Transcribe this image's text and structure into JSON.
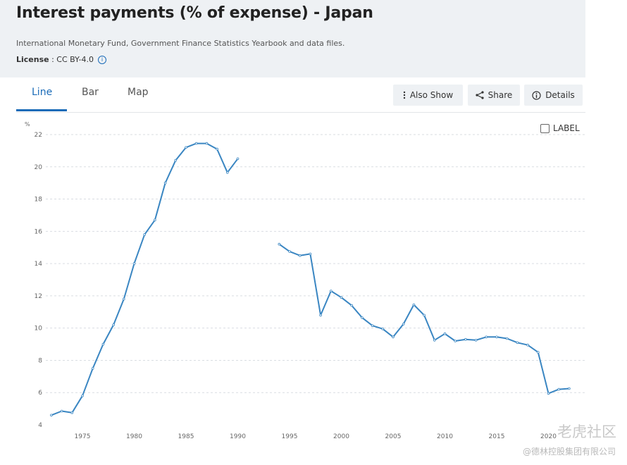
{
  "page": {
    "title": "Interest payments (% of expense) - Japan",
    "source": "International Monetary Fund, Government Finance Statistics Yearbook and data files.",
    "license_label": "License",
    "license_value": " : CC BY-4.0"
  },
  "tabs": [
    {
      "label": "Line",
      "active": true
    },
    {
      "label": "Bar",
      "active": false
    },
    {
      "label": "Map",
      "active": false
    }
  ],
  "toolbar": {
    "also_show": "Also Show",
    "share": "Share",
    "details": "Details"
  },
  "label_toggle": "LABEL",
  "watermark": {
    "text": "老虎社区",
    "subtext": "@德林控股集团有限公司"
  },
  "colors": {
    "line": "#3a86c2",
    "accent": "#1a6bb8",
    "grid": "#d9dde2",
    "header_bg": "#eef1f4"
  },
  "icons": {
    "also_show": "kebab-icon",
    "share": "share-icon",
    "details": "info-icon",
    "license": "info-icon"
  },
  "chart_data": {
    "type": "line",
    "title": "Interest payments (% of expense) - Japan",
    "ylabel": "%",
    "xlabel": "",
    "ylim": [
      4,
      22
    ],
    "xlim": [
      1971,
      2022
    ],
    "yticks": [
      4,
      6,
      8,
      10,
      12,
      14,
      16,
      18,
      20,
      22
    ],
    "xticks": [
      1975,
      1980,
      1985,
      1990,
      1995,
      2000,
      2005,
      2010,
      2015,
      2020
    ],
    "grid": true,
    "series": [
      {
        "values": [
          [
            1972,
            4.6
          ],
          [
            1973,
            4.85
          ],
          [
            1974,
            4.75
          ],
          [
            1975,
            5.8
          ],
          [
            1976,
            7.5
          ],
          [
            1977,
            9.0
          ],
          [
            1978,
            10.2
          ],
          [
            1979,
            11.8
          ],
          [
            1980,
            14.0
          ],
          [
            1981,
            15.8
          ],
          [
            1982,
            16.7
          ],
          [
            1983,
            19.0
          ],
          [
            1984,
            20.4
          ],
          [
            1985,
            21.2
          ],
          [
            1986,
            21.45
          ],
          [
            1987,
            21.45
          ],
          [
            1988,
            21.1
          ],
          [
            1989,
            19.65
          ],
          [
            1990,
            20.5
          ],
          [
            1991,
            null
          ],
          [
            1992,
            null
          ],
          [
            1993,
            null
          ],
          [
            1994,
            15.2
          ],
          [
            1995,
            14.75
          ],
          [
            1996,
            14.5
          ],
          [
            1997,
            14.6
          ],
          [
            1998,
            10.8
          ],
          [
            1999,
            12.3
          ],
          [
            2000,
            11.9
          ],
          [
            2001,
            11.4
          ],
          [
            2002,
            10.65
          ],
          [
            2003,
            10.15
          ],
          [
            2004,
            9.95
          ],
          [
            2005,
            9.45
          ],
          [
            2006,
            10.25
          ],
          [
            2007,
            11.45
          ],
          [
            2008,
            10.8
          ],
          [
            2009,
            9.25
          ],
          [
            2010,
            9.65
          ],
          [
            2011,
            9.2
          ],
          [
            2012,
            9.3
          ],
          [
            2013,
            9.25
          ],
          [
            2014,
            9.45
          ],
          [
            2015,
            9.45
          ],
          [
            2016,
            9.35
          ],
          [
            2017,
            9.1
          ],
          [
            2018,
            8.95
          ],
          [
            2019,
            8.5
          ],
          [
            2020,
            5.95
          ],
          [
            2021,
            6.2
          ],
          [
            2022,
            6.25
          ]
        ]
      }
    ]
  }
}
